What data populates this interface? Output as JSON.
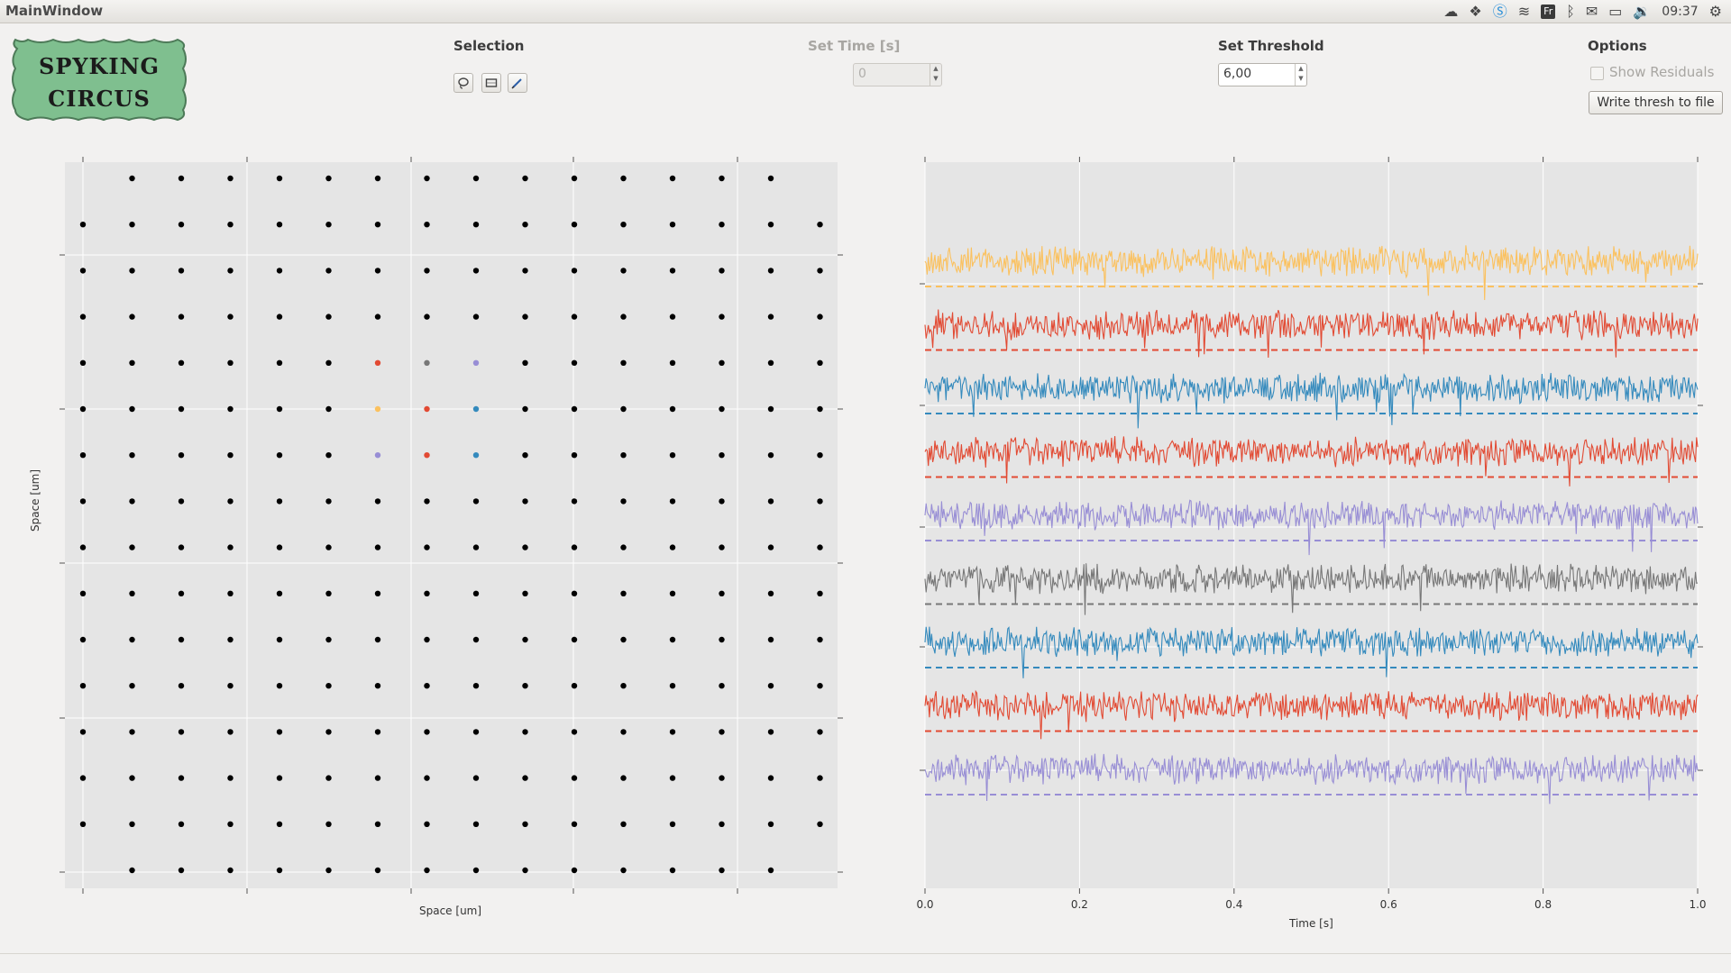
{
  "window": {
    "title": "MainWindow"
  },
  "tray": {
    "keyboard_layout": "Fr",
    "clock": "09:37"
  },
  "logo": {
    "line1": "SPYKING",
    "line2": "CIRCUS"
  },
  "selection": {
    "title": "Selection",
    "tools": [
      "lasso-icon",
      "rectangle-icon",
      "pencil-icon"
    ]
  },
  "set_time": {
    "title": "Set Time [s]",
    "value": "0"
  },
  "set_threshold": {
    "title": "Set Threshold",
    "value": "6,00"
  },
  "options": {
    "title": "Options",
    "show_residuals_label": "Show Residuals",
    "show_residuals_checked": false,
    "write_button": "Write thresh to file"
  },
  "probe_plot": {
    "xlabel": "Space [um]",
    "ylabel": "Space [um]"
  },
  "traces_plot": {
    "xlabel": "Time [s]"
  },
  "chart_data": [
    {
      "type": "scatter",
      "title": "",
      "xlabel": "Space [um]",
      "ylabel": "Space [um]",
      "grid": true,
      "columns": 16,
      "rows": 16,
      "electrodes": "16 x 16 grid of black dots; top row missing first and last column, bottom row missing first and last column",
      "highlighted": [
        {
          "col": 6,
          "row": 4,
          "color": "#e24a33"
        },
        {
          "col": 7,
          "row": 4,
          "color": "#777777"
        },
        {
          "col": 8,
          "row": 4,
          "color": "#988ed5"
        },
        {
          "col": 6,
          "row": 5,
          "color": "#fbc15e"
        },
        {
          "col": 7,
          "row": 5,
          "color": "#e24a33"
        },
        {
          "col": 8,
          "row": 5,
          "color": "#348abd"
        },
        {
          "col": 6,
          "row": 6,
          "color": "#988ed5"
        },
        {
          "col": 7,
          "row": 6,
          "color": "#e24a33"
        },
        {
          "col": 8,
          "row": 6,
          "color": "#348abd"
        }
      ]
    },
    {
      "type": "line",
      "title": "",
      "xlabel": "Time [s]",
      "ylabel": "",
      "xlim": [
        0.0,
        1.0
      ],
      "xticks": [
        "0.0",
        "0.2",
        "0.4",
        "0.6",
        "0.8",
        "1.0"
      ],
      "grid": true,
      "series_colors": [
        "#fbc15e",
        "#e24a33",
        "#348abd",
        "#e24a33",
        "#988ed5",
        "#777777",
        "#348abd",
        "#e24a33",
        "#988ed5"
      ],
      "threshold_lines": "dashed line below each trace in the same color"
    }
  ]
}
